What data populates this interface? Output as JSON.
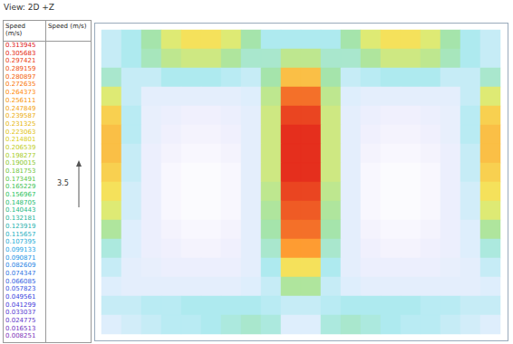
{
  "chart_data": {
    "type": "heatmap",
    "title": "View: 2D +Z",
    "tick_labels": false,
    "cells": [
      [
        0.1,
        0.12,
        0.16,
        0.2,
        0.22,
        0.22,
        0.2,
        0.16,
        0.12,
        0.12,
        0.12,
        0.12,
        0.16,
        0.2,
        0.22,
        0.22,
        0.2,
        0.16,
        0.12,
        0.1
      ],
      [
        0.1,
        0.12,
        0.15,
        0.18,
        0.19,
        0.19,
        0.17,
        0.14,
        0.14,
        0.18,
        0.18,
        0.14,
        0.14,
        0.17,
        0.19,
        0.19,
        0.18,
        0.15,
        0.12,
        0.1
      ],
      [
        0.14,
        0.1,
        0.1,
        0.12,
        0.12,
        0.12,
        0.11,
        0.1,
        0.16,
        0.24,
        0.24,
        0.16,
        0.1,
        0.11,
        0.12,
        0.12,
        0.12,
        0.1,
        0.1,
        0.14
      ],
      [
        0.2,
        0.1,
        0.07,
        0.07,
        0.07,
        0.07,
        0.07,
        0.08,
        0.18,
        0.28,
        0.28,
        0.18,
        0.08,
        0.07,
        0.07,
        0.07,
        0.07,
        0.07,
        0.1,
        0.2
      ],
      [
        0.23,
        0.11,
        0.06,
        0.05,
        0.04,
        0.04,
        0.05,
        0.07,
        0.19,
        0.3,
        0.3,
        0.19,
        0.07,
        0.05,
        0.04,
        0.04,
        0.05,
        0.06,
        0.11,
        0.23
      ],
      [
        0.24,
        0.11,
        0.06,
        0.04,
        0.03,
        0.03,
        0.04,
        0.07,
        0.19,
        0.31,
        0.31,
        0.19,
        0.07,
        0.04,
        0.03,
        0.03,
        0.04,
        0.06,
        0.11,
        0.24
      ],
      [
        0.24,
        0.1,
        0.05,
        0.03,
        0.02,
        0.02,
        0.03,
        0.07,
        0.19,
        0.31,
        0.31,
        0.19,
        0.07,
        0.03,
        0.02,
        0.02,
        0.03,
        0.05,
        0.1,
        0.24
      ],
      [
        0.23,
        0.1,
        0.05,
        0.02,
        0.01,
        0.01,
        0.02,
        0.07,
        0.19,
        0.31,
        0.31,
        0.19,
        0.07,
        0.02,
        0.01,
        0.01,
        0.02,
        0.05,
        0.1,
        0.23
      ],
      [
        0.22,
        0.09,
        0.05,
        0.02,
        0.01,
        0.01,
        0.02,
        0.07,
        0.18,
        0.3,
        0.3,
        0.18,
        0.07,
        0.02,
        0.01,
        0.01,
        0.02,
        0.05,
        0.09,
        0.22
      ],
      [
        0.2,
        0.09,
        0.05,
        0.02,
        0.01,
        0.01,
        0.02,
        0.07,
        0.17,
        0.29,
        0.29,
        0.17,
        0.07,
        0.02,
        0.01,
        0.01,
        0.02,
        0.05,
        0.09,
        0.2
      ],
      [
        0.17,
        0.08,
        0.05,
        0.03,
        0.02,
        0.02,
        0.03,
        0.07,
        0.16,
        0.28,
        0.28,
        0.16,
        0.07,
        0.03,
        0.02,
        0.02,
        0.03,
        0.05,
        0.08,
        0.17
      ],
      [
        0.13,
        0.08,
        0.05,
        0.04,
        0.03,
        0.03,
        0.04,
        0.07,
        0.14,
        0.26,
        0.26,
        0.14,
        0.07,
        0.04,
        0.03,
        0.03,
        0.04,
        0.05,
        0.08,
        0.13
      ],
      [
        0.1,
        0.07,
        0.06,
        0.05,
        0.05,
        0.05,
        0.05,
        0.07,
        0.12,
        0.22,
        0.22,
        0.12,
        0.07,
        0.05,
        0.05,
        0.05,
        0.05,
        0.06,
        0.07,
        0.1
      ],
      [
        0.08,
        0.07,
        0.07,
        0.07,
        0.07,
        0.07,
        0.07,
        0.08,
        0.1,
        0.17,
        0.17,
        0.1,
        0.08,
        0.07,
        0.07,
        0.07,
        0.07,
        0.07,
        0.07,
        0.08
      ],
      [
        0.1,
        0.1,
        0.11,
        0.11,
        0.12,
        0.12,
        0.12,
        0.12,
        0.11,
        0.1,
        0.1,
        0.11,
        0.12,
        0.12,
        0.12,
        0.12,
        0.11,
        0.11,
        0.1,
        0.1
      ],
      [
        0.08,
        0.09,
        0.1,
        0.11,
        0.11,
        0.12,
        0.13,
        0.14,
        0.13,
        0.08,
        0.08,
        0.13,
        0.14,
        0.13,
        0.12,
        0.11,
        0.11,
        0.1,
        0.09,
        0.08
      ]
    ],
    "color_bar": {
      "title": "Speed (m/s)",
      "range": [
        0,
        0.313945
      ],
      "ticks": [
        0.313945,
        0.305683,
        0.297421,
        0.289159,
        0.280897,
        0.272635,
        0.264373,
        0.256111,
        0.247849,
        0.239587,
        0.231325,
        0.223063,
        0.214801,
        0.206539,
        0.198277,
        0.190015,
        0.181753,
        0.173491,
        0.165229,
        0.156967,
        0.148705,
        0.140443,
        0.132181,
        0.123919,
        0.115657,
        0.107395,
        0.099133,
        0.090871,
        0.082609,
        0.074347,
        0.066085,
        0.057823,
        0.049561,
        0.041299,
        0.033037,
        0.024775,
        0.016513,
        0.008251
      ]
    },
    "vector_scale": {
      "title": "Speed (m/s)",
      "value": 3.5
    }
  }
}
